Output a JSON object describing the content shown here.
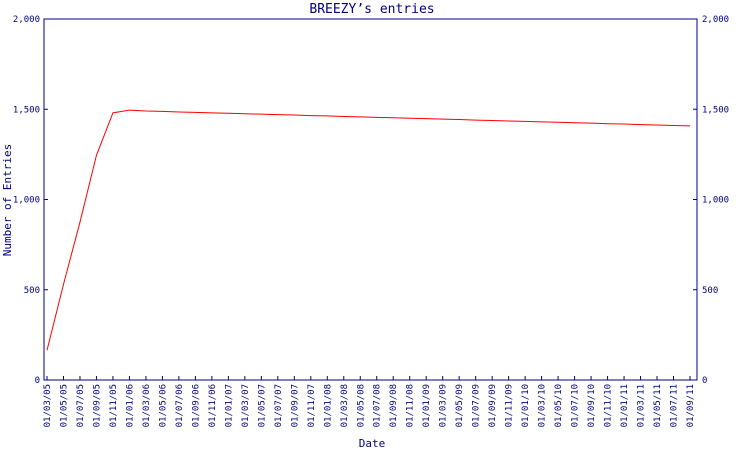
{
  "chart_data": {
    "type": "line",
    "title": "BREEZY’s entries",
    "x_label": "Date",
    "y_label": "Number of Entries",
    "categories": [
      "01/03/05",
      "01/05/05",
      "01/07/05",
      "01/09/05",
      "01/11/05",
      "01/01/06",
      "01/03/06",
      "01/05/06",
      "01/07/06",
      "01/09/06",
      "01/11/06",
      "01/01/07",
      "01/03/07",
      "01/05/07",
      "01/07/07",
      "01/09/07",
      "01/11/07",
      "01/01/08",
      "01/03/08",
      "01/05/08",
      "01/07/08",
      "01/09/08",
      "01/11/08",
      "01/01/09",
      "01/03/09",
      "01/05/09",
      "01/07/09",
      "01/09/09",
      "01/11/09",
      "01/01/10",
      "01/03/10",
      "01/05/10",
      "01/07/10",
      "01/09/10",
      "01/11/10",
      "01/01/11",
      "01/03/11",
      "01/05/11",
      "01/07/11",
      "01/09/11"
    ],
    "values": [
      165,
      530,
      875,
      1245,
      1480,
      1495,
      1490,
      1488,
      1485,
      1483,
      1480,
      1478,
      1475,
      1473,
      1470,
      1468,
      1465,
      1463,
      1460,
      1458,
      1455,
      1453,
      1450,
      1448,
      1445,
      1443,
      1440,
      1438,
      1435,
      1433,
      1430,
      1428,
      1425,
      1423,
      1420,
      1418,
      1415,
      1413,
      1410,
      1408
    ],
    "color": "#ff0000",
    "ylim": [
      0,
      2000
    ],
    "yticks": [
      0,
      500,
      {
        "value": 1000,
        "label": "1,000"
      },
      {
        "value": 1500,
        "label": "1,500"
      },
      {
        "value": 2000,
        "label": "2,000"
      }
    ],
    "y2lim": [
      0,
      2000
    ],
    "y2ticks": [
      0,
      500,
      {
        "value": 1000,
        "label": "1,000"
      },
      {
        "value": 1500,
        "label": "1,500"
      },
      {
        "value": 2000,
        "label": "2,000"
      }
    ]
  }
}
